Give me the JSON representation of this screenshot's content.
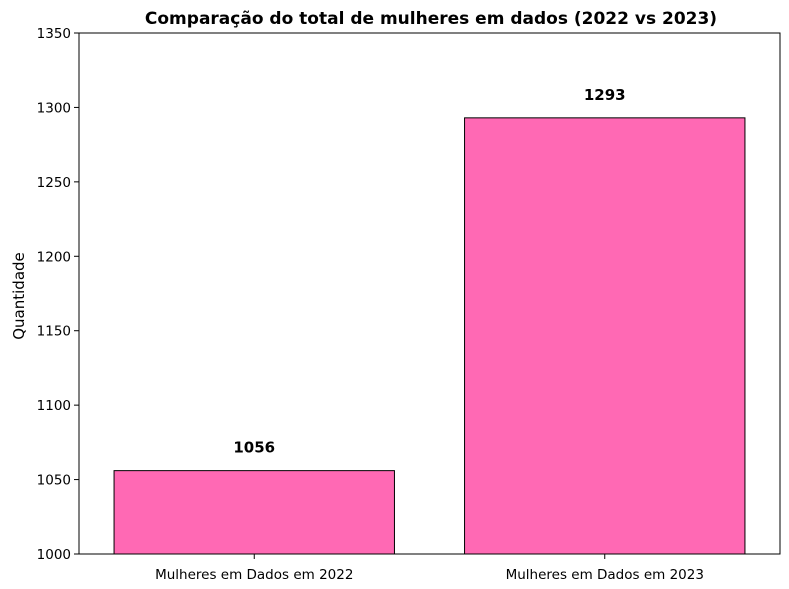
{
  "chart_data": {
    "type": "bar",
    "title": "Comparação do total de mulheres em dados (2022 vs 2023)",
    "xlabel": "",
    "ylabel": "Quantidade",
    "categories": [
      "Mulheres em Dados em 2022",
      "Mulheres em Dados em 2023"
    ],
    "values": [
      1056,
      1293
    ],
    "data_labels": [
      "1056",
      "1293"
    ],
    "ylim": [
      1000,
      1350
    ],
    "yticks": [
      1000,
      1050,
      1100,
      1150,
      1200,
      1250,
      1300,
      1350
    ],
    "ytick_labels": [
      "1000",
      "1050",
      "1100",
      "1150",
      "1200",
      "1250",
      "1300",
      "1350"
    ],
    "bar_color": "#ff69b4",
    "edge_color": "#000000",
    "grid": false
  }
}
